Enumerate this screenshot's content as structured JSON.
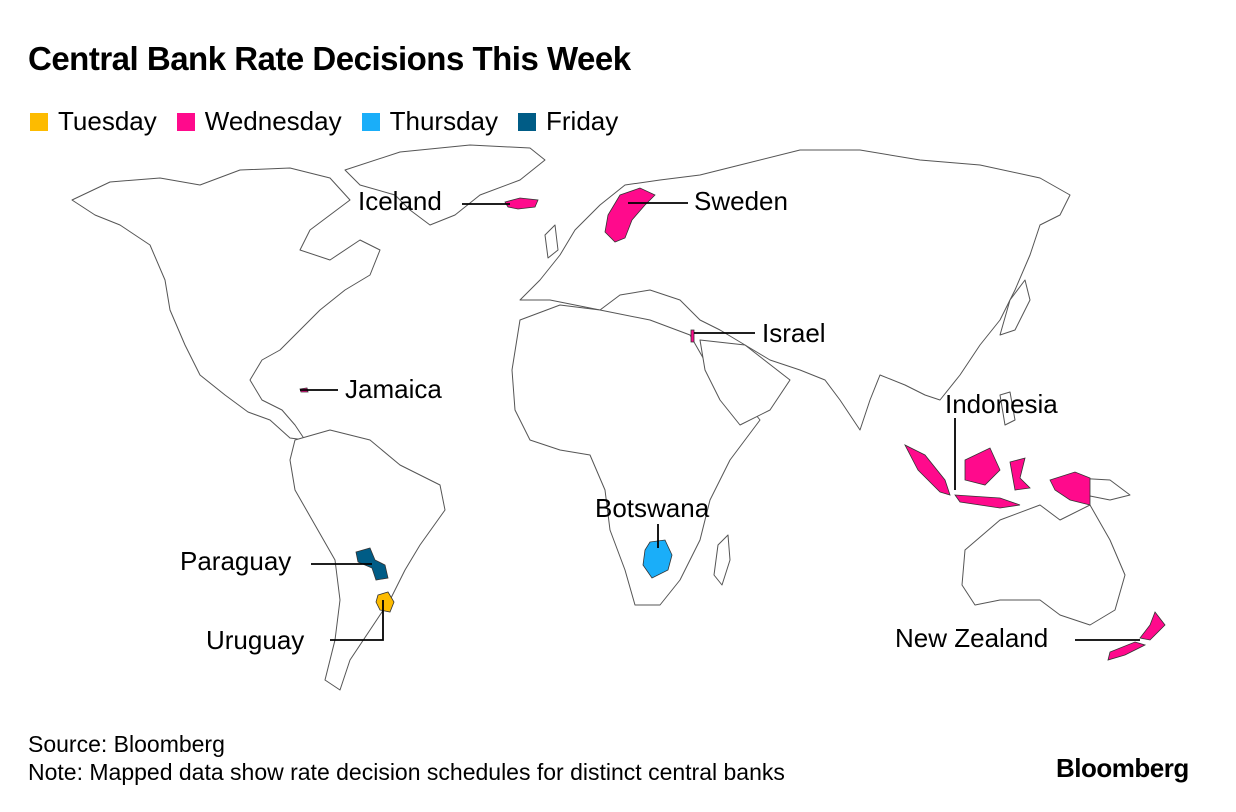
{
  "title": "Central Bank Rate Decisions This Week",
  "legend": [
    {
      "label": "Tuesday",
      "color": "#FDBB00"
    },
    {
      "label": "Wednesday",
      "color": "#FF0A8C"
    },
    {
      "label": "Thursday",
      "color": "#1AAEF9"
    },
    {
      "label": "Friday",
      "color": "#005C86"
    }
  ],
  "countries": {
    "iceland": {
      "label": "Iceland",
      "day": "Wednesday"
    },
    "sweden": {
      "label": "Sweden",
      "day": "Wednesday"
    },
    "israel": {
      "label": "Israel",
      "day": "Wednesday"
    },
    "jamaica": {
      "label": "Jamaica",
      "day": "Wednesday"
    },
    "indonesia": {
      "label": "Indonesia",
      "day": "Wednesday"
    },
    "botswana": {
      "label": "Botswana",
      "day": "Thursday"
    },
    "paraguay": {
      "label": "Paraguay",
      "day": "Friday"
    },
    "uruguay": {
      "label": "Uruguay",
      "day": "Tuesday"
    },
    "new_zealand": {
      "label": "New Zealand",
      "day": "Wednesday"
    }
  },
  "footer": {
    "source": "Source: Bloomberg",
    "note": "Note: Mapped data show rate decision schedules for distinct central banks",
    "logo": "Bloomberg"
  }
}
